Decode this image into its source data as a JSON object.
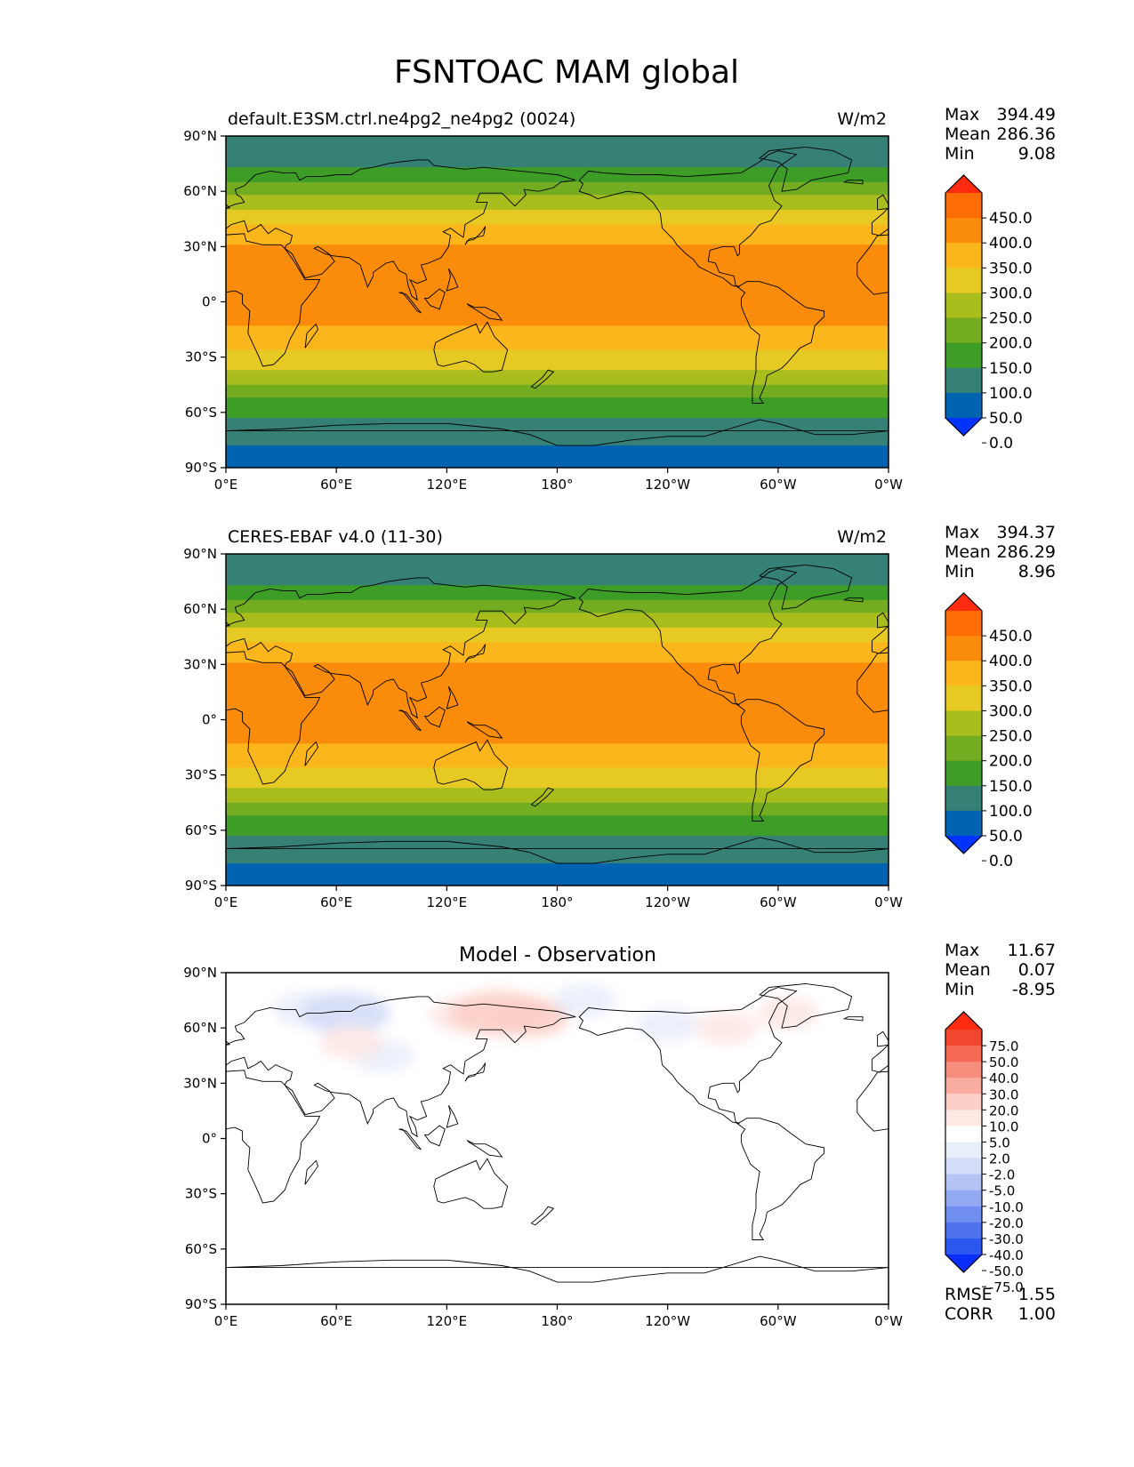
{
  "title": "FSNTOAC MAM global",
  "units": "W/m2",
  "colors": {
    "abs_levels": [
      "#0033ff",
      "#0063b1",
      "#368175",
      "#3d9d27",
      "#73ac21",
      "#a9bd1d",
      "#e6c923",
      "#fbb61c",
      "#fb8c0b",
      "#fd6d06",
      "#ff2b10"
    ],
    "diff_levels": [
      "#0a2eff",
      "#2b57f0",
      "#4e72ee",
      "#6f8ef0",
      "#93a9f2",
      "#b4c4f5",
      "#d4ddf8",
      "#e9eefb",
      "#ffffff",
      "#fde8e4",
      "#fccfc8",
      "#f9ada1",
      "#f68d7d",
      "#f46a55",
      "#f2472f",
      "#ff2b10"
    ],
    "land_outline": "#000000",
    "frame": "#000000"
  },
  "chart_data": [
    {
      "type": "heatmap",
      "name": "default.E3SM.ctrl.ne4pg2_ne4pg2 (0024)",
      "units": "W/m2",
      "stats": {
        "max": "394.49",
        "mean": "286.36",
        "min": "9.08"
      },
      "xticks": [
        "0°E",
        "60°E",
        "120°E",
        "180°",
        "120°W",
        "60°W",
        "0°W"
      ],
      "yticks": [
        "90°N",
        "60°N",
        "30°N",
        "0°",
        "30°S",
        "60°S",
        "90°S"
      ],
      "colorbar": [
        "450.0",
        "400.0",
        "350.0",
        "300.0",
        "250.0",
        "200.0",
        "150.0",
        "100.0",
        "50.0",
        "0.0"
      ],
      "lat_profile": [
        [
          90,
          80
        ],
        [
          75,
          90
        ],
        [
          65,
          150
        ],
        [
          58,
          200
        ],
        [
          50,
          250
        ],
        [
          42,
          300
        ],
        [
          35,
          340
        ],
        [
          25,
          365
        ],
        [
          12,
          365
        ],
        [
          0,
          365
        ],
        [
          -10,
          362
        ],
        [
          -18,
          330
        ],
        [
          -27,
          295
        ],
        [
          -35,
          260
        ],
        [
          -42,
          225
        ],
        [
          -48,
          180
        ],
        [
          -55,
          130
        ],
        [
          -63,
          100
        ],
        [
          -70,
          90
        ],
        [
          -78,
          50
        ],
        [
          -90,
          40
        ]
      ]
    },
    {
      "type": "heatmap",
      "name": "CERES-EBAF v4.0 (11-30)",
      "units": "W/m2",
      "stats": {
        "max": "394.37",
        "mean": "286.29",
        "min": "8.96"
      },
      "xticks": [
        "0°E",
        "60°E",
        "120°E",
        "180°",
        "120°W",
        "60°W",
        "0°W"
      ],
      "yticks": [
        "90°N",
        "60°N",
        "30°N",
        "0°",
        "30°S",
        "60°S",
        "90°S"
      ],
      "colorbar": [
        "450.0",
        "400.0",
        "350.0",
        "300.0",
        "250.0",
        "200.0",
        "150.0",
        "100.0",
        "50.0",
        "0.0"
      ],
      "lat_profile": [
        [
          90,
          80
        ],
        [
          75,
          90
        ],
        [
          65,
          150
        ],
        [
          58,
          200
        ],
        [
          50,
          250
        ],
        [
          42,
          300
        ],
        [
          35,
          340
        ],
        [
          25,
          365
        ],
        [
          12,
          365
        ],
        [
          0,
          365
        ],
        [
          -10,
          362
        ],
        [
          -18,
          330
        ],
        [
          -27,
          295
        ],
        [
          -35,
          260
        ],
        [
          -42,
          225
        ],
        [
          -48,
          180
        ],
        [
          -55,
          130
        ],
        [
          -63,
          100
        ],
        [
          -70,
          90
        ],
        [
          -78,
          50
        ],
        [
          -90,
          40
        ]
      ]
    },
    {
      "type": "heatmap",
      "name": "Model - Observation",
      "stats": {
        "max": "11.67",
        "mean": "0.07",
        "min": "-8.95"
      },
      "metrics": {
        "rmse": "1.55",
        "corr": "1.00"
      },
      "xticks": [
        "0°E",
        "60°E",
        "120°E",
        "180°",
        "120°W",
        "60°W",
        "0°W"
      ],
      "yticks": [
        "90°N",
        "60°N",
        "30°N",
        "0°",
        "30°S",
        "60°S",
        "90°S"
      ],
      "colorbar": [
        "75.0",
        "50.0",
        "40.0",
        "30.0",
        "20.0",
        "10.0",
        "5.0",
        "2.0",
        "-2.0",
        "-5.0",
        "-10.0",
        "-20.0",
        "-30.0",
        "-40.0",
        "-50.0",
        "-75.0"
      ],
      "anomalies": [
        {
          "lon": 45,
          "lat": 70,
          "value": -4
        },
        {
          "lon": 65,
          "lat": 68,
          "value": -6
        },
        {
          "lon": 85,
          "lat": 45,
          "value": -3
        },
        {
          "lon": 68,
          "lat": 52,
          "value": 3
        },
        {
          "lon": 130,
          "lat": 67,
          "value": 4
        },
        {
          "lon": 148,
          "lat": 68,
          "value": 7
        },
        {
          "lon": 165,
          "lat": 66,
          "value": 5
        },
        {
          "lon": 195,
          "lat": 75,
          "value": -3
        },
        {
          "lon": 240,
          "lat": 62,
          "value": -3
        },
        {
          "lon": 272,
          "lat": 60,
          "value": 3
        },
        {
          "lon": 305,
          "lat": 68,
          "value": 3
        },
        {
          "lon": 280,
          "lat": 77,
          "value": -2
        }
      ]
    }
  ],
  "labels": {
    "max": "Max",
    "mean": "Mean",
    "min": "Min",
    "rmse": "RMSE",
    "corr": "CORR"
  }
}
